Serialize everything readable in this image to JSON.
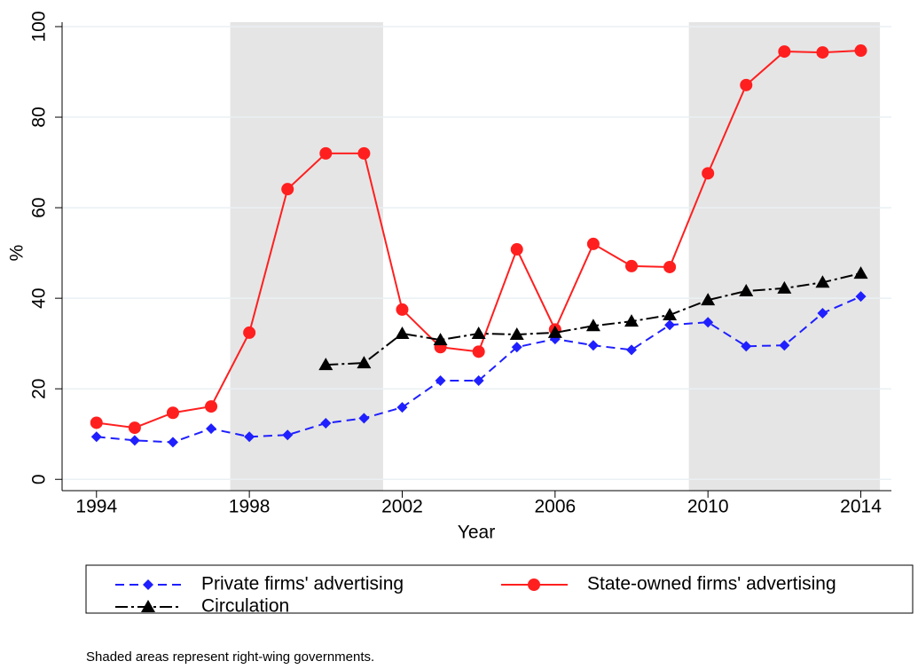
{
  "chart_data": {
    "type": "line",
    "x_label": "Year",
    "y_label": "%",
    "note": "Shaded areas represent right-wing governments.",
    "x": [
      1994,
      1995,
      1996,
      1997,
      1998,
      1999,
      2000,
      2001,
      2002,
      2003,
      2004,
      2005,
      2006,
      2007,
      2008,
      2009,
      2010,
      2011,
      2012,
      2013,
      2014
    ],
    "series": [
      {
        "name": "Private firms' advertising",
        "color": "#1f1fff",
        "dash": "dashed",
        "marker": "diamond",
        "values": [
          9.4,
          8.6,
          8.2,
          11.2,
          9.4,
          9.8,
          12.4,
          13.5,
          15.9,
          21.8,
          21.8,
          29.2,
          31.0,
          29.6,
          28.6,
          34.1,
          34.7,
          29.4,
          29.6,
          36.7,
          40.4
        ]
      },
      {
        "name": "State-owned firms' advertising",
        "color": "#ff1f1f",
        "dash": "solid",
        "marker": "circle",
        "values": [
          12.5,
          11.4,
          14.7,
          16.1,
          32.4,
          64.1,
          72.0,
          72.0,
          37.5,
          29.2,
          28.2,
          50.8,
          33.1,
          52.0,
          47.1,
          46.9,
          67.6,
          87.1,
          94.5,
          94.3,
          94.7
        ]
      },
      {
        "name": "Circulation",
        "color": "#000000",
        "dash": "dashdot",
        "marker": "triangle",
        "values": [
          null,
          null,
          null,
          null,
          null,
          null,
          25.3,
          25.7,
          32.2,
          30.8,
          32.2,
          32.0,
          32.4,
          33.9,
          34.9,
          36.3,
          39.6,
          41.6,
          42.2,
          43.5,
          45.5
        ]
      }
    ],
    "shaded": [
      [
        1997.5,
        2001.5
      ],
      [
        2009.5,
        2014.5
      ]
    ],
    "shade_color": "#e5e5e5",
    "xlim": [
      1993.1,
      2014.8
    ],
    "ylim": [
      -2.5,
      100
    ],
    "xticks": [
      1994,
      1998,
      2002,
      2006,
      2010,
      2014
    ],
    "yticks": [
      0,
      20,
      40,
      60,
      80,
      100
    ],
    "grid": true,
    "legend": "bottom"
  }
}
